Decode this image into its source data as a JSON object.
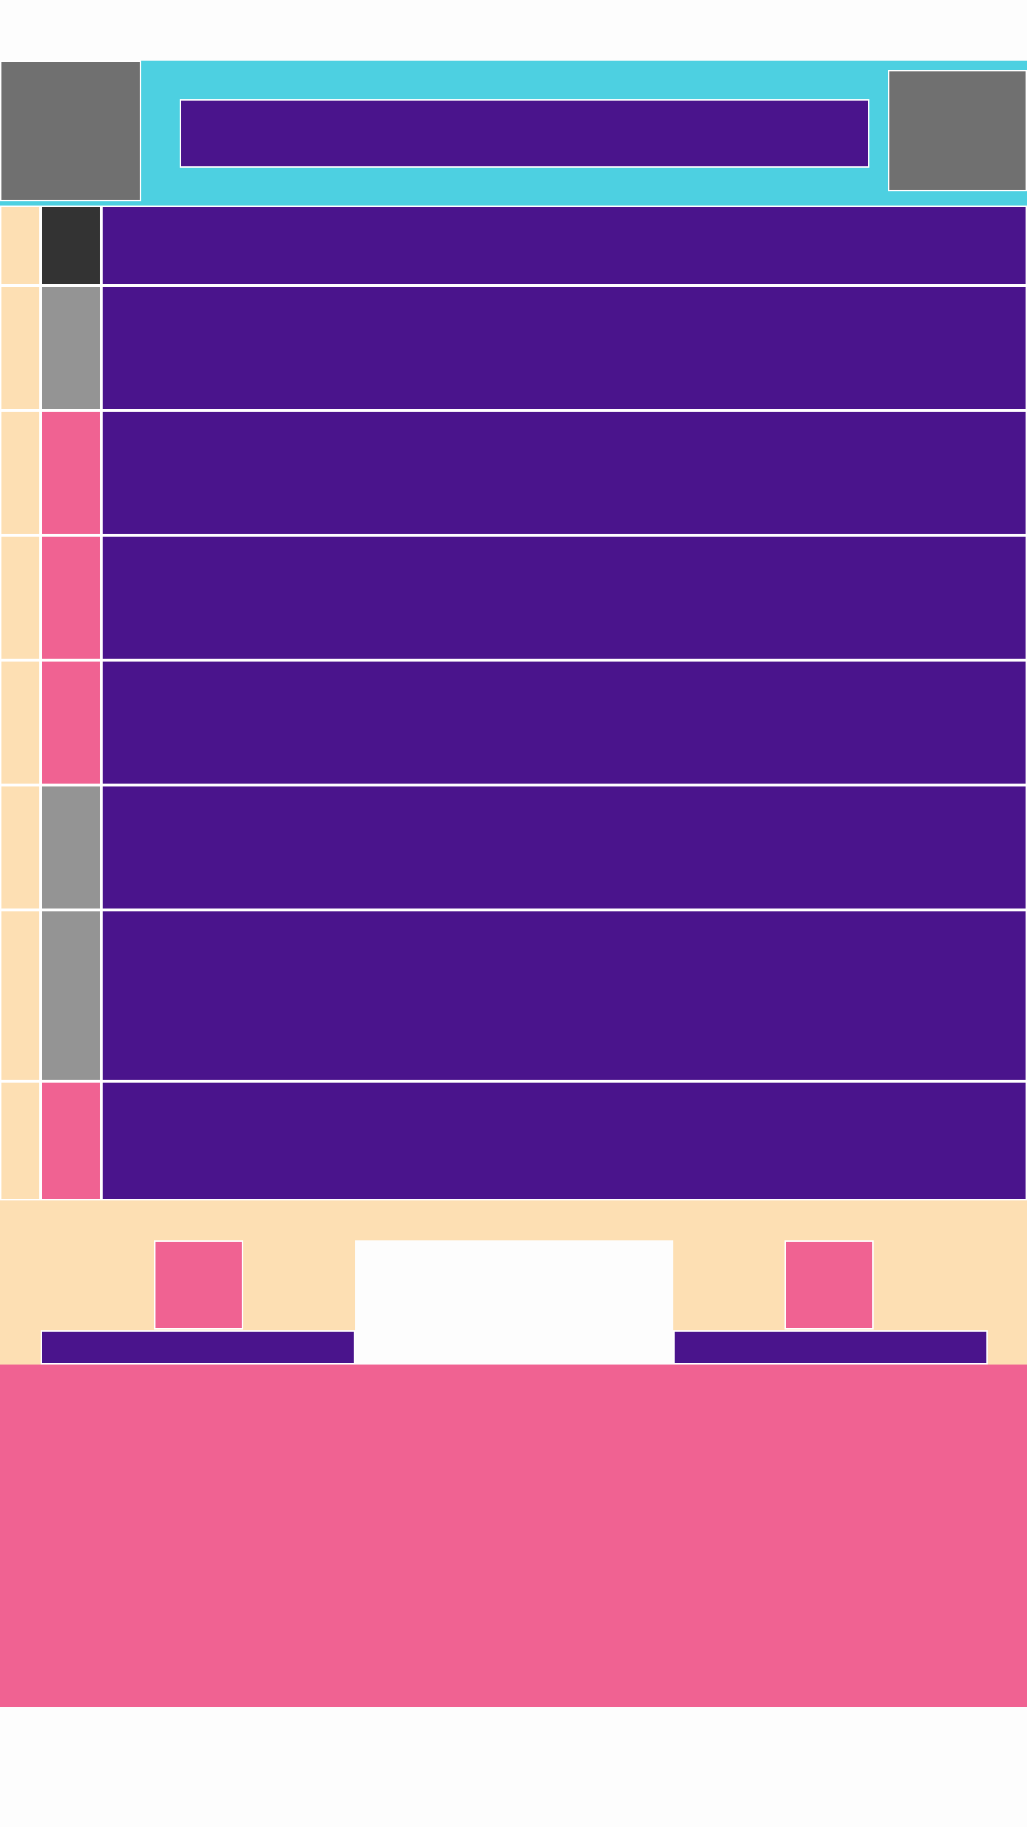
{
  "colors": {
    "header_bg": "#4dd0e1",
    "accent_purple": "#4a148c",
    "accent_pink": "#f06292",
    "neutral_gray": "#707070",
    "light_gray": "#949494",
    "dark_gray": "#333333",
    "cream": "#fddfb3",
    "white": "#fdfdfd"
  },
  "header": {
    "left_icon": "image-placeholder-icon",
    "search_label": "",
    "right_icon": "image-placeholder-icon"
  },
  "list": {
    "items": [
      {
        "marker_color": "#333333",
        "label": ""
      },
      {
        "marker_color": "#949494",
        "label": ""
      },
      {
        "marker_color": "#f06292",
        "label": ""
      },
      {
        "marker_color": "#f06292",
        "label": ""
      },
      {
        "marker_color": "#f06292",
        "label": ""
      },
      {
        "marker_color": "#949494",
        "label": ""
      },
      {
        "marker_color": "#949494",
        "label": ""
      },
      {
        "marker_color": "#f06292",
        "label": ""
      }
    ]
  },
  "bottom_nav": {
    "left_icon": "nav-icon",
    "left_label": "",
    "center_label": "",
    "right_icon": "nav-icon",
    "right_label": ""
  },
  "footer": {
    "panel_label": ""
  }
}
